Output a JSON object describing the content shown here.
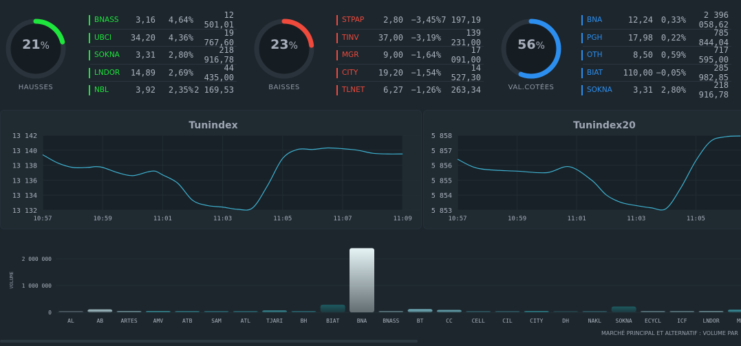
{
  "gauges": [
    {
      "value": 21,
      "unit": "%",
      "label": "HAUSSES",
      "color": "#1ee63c"
    },
    {
      "value": 23,
      "unit": "%",
      "label": "BAISSES",
      "color": "#ef4a3c"
    },
    {
      "value": 56,
      "unit": "%",
      "label": "VAL.COTÉES",
      "color": "#2c8ff0"
    }
  ],
  "tables": [
    {
      "color": "#1ee63c",
      "rows": [
        {
          "symbol": "BNASS",
          "price": "3,16",
          "change": "4,64%",
          "volume": "12 501,01"
        },
        {
          "symbol": "UBCI",
          "price": "34,20",
          "change": "4,36%",
          "volume": "19 767,60"
        },
        {
          "symbol": "SOKNA",
          "price": "3,31",
          "change": "2,80%",
          "volume": "218 916,78"
        },
        {
          "symbol": "LNDOR",
          "price": "14,89",
          "change": "2,69%",
          "volume": "44 435,00"
        },
        {
          "symbol": "NBL",
          "price": "3,92",
          "change": "2,35%",
          "volume": "2 169,53"
        }
      ]
    },
    {
      "color": "#ef4a3c",
      "rows": [
        {
          "symbol": "STPAP",
          "price": "2,80",
          "change": "−3,45%",
          "volume": "7 197,19"
        },
        {
          "symbol": "TINV",
          "price": "37,00",
          "change": "−3,19%",
          "volume": "139 231,00"
        },
        {
          "symbol": "MGR",
          "price": "9,00",
          "change": "−1,64%",
          "volume": "17 091,00"
        },
        {
          "symbol": "CITY",
          "price": "19,20",
          "change": "−1,54%",
          "volume": "14 527,30"
        },
        {
          "symbol": "TLNET",
          "price": "6,27",
          "change": "−1,26%",
          "volume": "263,34"
        }
      ]
    },
    {
      "color": "#2c8ff0",
      "rows": [
        {
          "symbol": "BNA",
          "price": "12,24",
          "change": "0,33%",
          "volume": "2 396 058,62"
        },
        {
          "symbol": "PGH",
          "price": "17,98",
          "change": "0,22%",
          "volume": "785 844,04"
        },
        {
          "symbol": "OTH",
          "price": "8,50",
          "change": "0,59%",
          "volume": "717 595,00"
        },
        {
          "symbol": "BIAT",
          "price": "110,00",
          "change": "−0,05%",
          "volume": "285 982,85"
        },
        {
          "symbol": "SOKNA",
          "price": "3,31",
          "change": "2,80%",
          "volume": "218 916,78"
        }
      ]
    }
  ],
  "chart_data": [
    {
      "type": "line",
      "title": "Tunindex",
      "line_color": "#3fb3d3",
      "grid": true,
      "ylim": [
        13132,
        13142
      ],
      "yticks": [
        "13 132",
        "13 134",
        "13 136",
        "13 138",
        "13 140",
        "13 142"
      ],
      "xticks": [
        "10:57",
        "10:59",
        "11:01",
        "11:03",
        "11:05",
        "11:07",
        "11:09"
      ],
      "x": [
        "10:57:00",
        "10:57:30",
        "10:58:00",
        "10:58:30",
        "10:58:45",
        "10:59:00",
        "10:59:30",
        "11:00:00",
        "11:00:30",
        "11:00:45",
        "11:01:00",
        "11:01:30",
        "11:02:00",
        "11:02:30",
        "11:03:00",
        "11:03:30",
        "11:04:00",
        "11:04:30",
        "11:05:00",
        "11:05:30",
        "11:06:00",
        "11:06:30",
        "11:07:00",
        "11:07:30",
        "11:08:00",
        "11:08:30",
        "11:09:00"
      ],
      "y": [
        13139.4,
        13138.3,
        13137.7,
        13137.7,
        13137.8,
        13137.7,
        13137.0,
        13136.6,
        13137.1,
        13137.2,
        13136.7,
        13135.6,
        13133.3,
        13132.6,
        13132.4,
        13132.1,
        13132.3,
        13135.3,
        13138.9,
        13140.1,
        13140.1,
        13140.3,
        13140.2,
        13140.0,
        13139.6,
        13139.5,
        13139.5
      ]
    },
    {
      "type": "line",
      "title": "Tunindex20",
      "line_color": "#3fb3d3",
      "grid": true,
      "ylim": [
        5853,
        5858
      ],
      "yticks": [
        "5 853",
        "5 854",
        "5 855",
        "5 856",
        "5 857",
        "5 858"
      ],
      "xticks": [
        "10:57",
        "10:59",
        "11:01",
        "11:03",
        "11:05"
      ],
      "x": [
        "10:57:00",
        "10:57:30",
        "10:58:00",
        "10:59:00",
        "11:00:00",
        "11:00:45",
        "11:01:30",
        "11:02:00",
        "11:02:30",
        "11:03:00",
        "11:03:30",
        "11:04:00",
        "11:04:30",
        "11:05:00",
        "11:05:30",
        "11:06:00",
        "11:06:30"
      ],
      "y": [
        5856.4,
        5855.9,
        5855.7,
        5855.6,
        5855.5,
        5855.9,
        5855.0,
        5854.0,
        5853.5,
        5853.3,
        5853.15,
        5853.1,
        5854.5,
        5856.3,
        5857.6,
        5857.9,
        5857.95
      ]
    },
    {
      "type": "bar",
      "ylabel": "VOLUME",
      "ylim": [
        0,
        2500000
      ],
      "yticks": [
        "0",
        "1 000 000",
        "2 000 000"
      ],
      "caption": "MARCHÉ PRINCIPAL ET ALTERNATIF : VOLUME PAR",
      "categories": [
        "AL",
        "AB",
        "ARTES",
        "AMV",
        "ATB",
        "SAM",
        "ATL",
        "TJARI",
        "BH",
        "BIAT",
        "BNA",
        "BNASS",
        "BT",
        "CC",
        "CELL",
        "CIL",
        "CITY",
        "DH",
        "NAKL",
        "SOKNA",
        "ECYCL",
        "ICF",
        "LNDOR",
        "MP"
      ],
      "values": [
        20000,
        110000,
        50000,
        20000,
        15000,
        10000,
        10000,
        70000,
        15000,
        285000,
        2396000,
        12500,
        120000,
        90000,
        10000,
        10000,
        15000,
        20000,
        10000,
        219000,
        15000,
        15000,
        44000,
        100000
      ],
      "colors": [
        "#5a6870",
        "#b6d6dc",
        "#7aa0a8",
        "#3a9aa6",
        "#2f7f8a",
        "#2a6f7a",
        "#2a6f7a",
        "#3a9aa6",
        "#2a6f7a",
        "#1c5a60",
        "#e6f4f6",
        "#6a8a92",
        "#7fc6d4",
        "#6fb8c6",
        "#2f5f6a",
        "#2f5f6a",
        "#2f8f9a",
        "#264a52",
        "#2f5f6a",
        "#1c5a60",
        "#6a8a92",
        "#6a8a92",
        "#7aa0a8",
        "#3a9aa6"
      ]
    }
  ]
}
